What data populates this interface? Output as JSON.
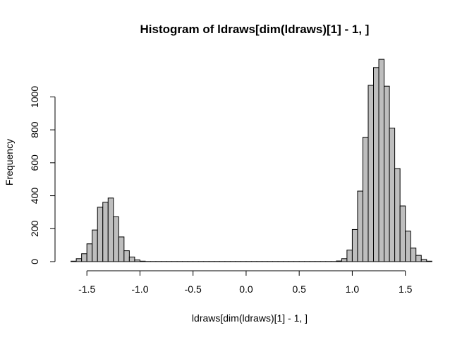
{
  "chart_data": {
    "type": "bar",
    "title": "Histogram of ldraws[dim(ldraws)[1] - 1, ]",
    "xlabel": "ldraws[dim(ldraws)[1] - 1, ]",
    "ylabel": "Frequency",
    "bin_width": 0.05,
    "xlim": [
      -1.65,
      1.75
    ],
    "ylim": [
      0,
      1220
    ],
    "x_ticks": [
      -1.5,
      -1.0,
      -0.5,
      0.0,
      0.5,
      1.0,
      1.5
    ],
    "x_tick_labels": [
      "-1.5",
      "-1.0",
      "-0.5",
      "0.0",
      "0.5",
      "1.0",
      "1.5"
    ],
    "y_ticks": [
      0,
      200,
      400,
      600,
      800,
      1000
    ],
    "y_tick_labels": [
      "0",
      "200",
      "400",
      "600",
      "800",
      "1000"
    ],
    "grid": false,
    "bins": [
      {
        "x0": -1.65,
        "x1": -1.6,
        "count": 3
      },
      {
        "x0": -1.6,
        "x1": -1.55,
        "count": 18
      },
      {
        "x0": -1.55,
        "x1": -1.5,
        "count": 48
      },
      {
        "x0": -1.5,
        "x1": -1.45,
        "count": 108
      },
      {
        "x0": -1.45,
        "x1": -1.4,
        "count": 192
      },
      {
        "x0": -1.4,
        "x1": -1.35,
        "count": 330
      },
      {
        "x0": -1.35,
        "x1": -1.3,
        "count": 360
      },
      {
        "x0": -1.3,
        "x1": -1.25,
        "count": 386
      },
      {
        "x0": -1.25,
        "x1": -1.2,
        "count": 272
      },
      {
        "x0": -1.2,
        "x1": -1.15,
        "count": 150
      },
      {
        "x0": -1.15,
        "x1": -1.1,
        "count": 66
      },
      {
        "x0": -1.1,
        "x1": -1.05,
        "count": 28
      },
      {
        "x0": -1.05,
        "x1": -1.0,
        "count": 10
      },
      {
        "x0": -1.0,
        "x1": -0.95,
        "count": 3
      },
      {
        "x0": -0.95,
        "x1": -0.9,
        "count": 1
      },
      {
        "x0": -0.9,
        "x1": -0.85,
        "count": 1
      },
      {
        "x0": -0.85,
        "x1": -0.8,
        "count": 1
      },
      {
        "x0": -0.8,
        "x1": -0.75,
        "count": 1
      },
      {
        "x0": -0.75,
        "x1": -0.7,
        "count": 1
      },
      {
        "x0": -0.7,
        "x1": -0.65,
        "count": 1
      },
      {
        "x0": -0.65,
        "x1": -0.6,
        "count": 1
      },
      {
        "x0": -0.6,
        "x1": -0.55,
        "count": 1
      },
      {
        "x0": -0.55,
        "x1": -0.5,
        "count": 1
      },
      {
        "x0": -0.5,
        "x1": -0.45,
        "count": 1
      },
      {
        "x0": -0.45,
        "x1": -0.4,
        "count": 1
      },
      {
        "x0": -0.4,
        "x1": -0.35,
        "count": 1
      },
      {
        "x0": -0.35,
        "x1": -0.3,
        "count": 1
      },
      {
        "x0": -0.3,
        "x1": -0.25,
        "count": 1
      },
      {
        "x0": -0.25,
        "x1": -0.2,
        "count": 1
      },
      {
        "x0": -0.2,
        "x1": -0.15,
        "count": 1
      },
      {
        "x0": -0.15,
        "x1": -0.1,
        "count": 1
      },
      {
        "x0": -0.1,
        "x1": -0.05,
        "count": 1
      },
      {
        "x0": -0.05,
        "x1": 0.0,
        "count": 1
      },
      {
        "x0": 0.0,
        "x1": 0.05,
        "count": 1
      },
      {
        "x0": 0.05,
        "x1": 0.1,
        "count": 1
      },
      {
        "x0": 0.1,
        "x1": 0.15,
        "count": 1
      },
      {
        "x0": 0.15,
        "x1": 0.2,
        "count": 1
      },
      {
        "x0": 0.2,
        "x1": 0.25,
        "count": 1
      },
      {
        "x0": 0.25,
        "x1": 0.3,
        "count": 1
      },
      {
        "x0": 0.3,
        "x1": 0.35,
        "count": 1
      },
      {
        "x0": 0.35,
        "x1": 0.4,
        "count": 1
      },
      {
        "x0": 0.4,
        "x1": 0.45,
        "count": 1
      },
      {
        "x0": 0.45,
        "x1": 0.5,
        "count": 1
      },
      {
        "x0": 0.5,
        "x1": 0.55,
        "count": 1
      },
      {
        "x0": 0.55,
        "x1": 0.6,
        "count": 1
      },
      {
        "x0": 0.6,
        "x1": 0.65,
        "count": 1
      },
      {
        "x0": 0.65,
        "x1": 0.7,
        "count": 1
      },
      {
        "x0": 0.7,
        "x1": 0.75,
        "count": 1
      },
      {
        "x0": 0.75,
        "x1": 0.8,
        "count": 1
      },
      {
        "x0": 0.8,
        "x1": 0.85,
        "count": 1
      },
      {
        "x0": 0.85,
        "x1": 0.9,
        "count": 4
      },
      {
        "x0": 0.9,
        "x1": 0.95,
        "count": 18
      },
      {
        "x0": 0.95,
        "x1": 1.0,
        "count": 70
      },
      {
        "x0": 1.0,
        "x1": 1.05,
        "count": 195
      },
      {
        "x0": 1.05,
        "x1": 1.1,
        "count": 428
      },
      {
        "x0": 1.1,
        "x1": 1.15,
        "count": 755
      },
      {
        "x0": 1.15,
        "x1": 1.2,
        "count": 1070
      },
      {
        "x0": 1.2,
        "x1": 1.25,
        "count": 1178
      },
      {
        "x0": 1.25,
        "x1": 1.3,
        "count": 1228
      },
      {
        "x0": 1.3,
        "x1": 1.35,
        "count": 1065
      },
      {
        "x0": 1.35,
        "x1": 1.4,
        "count": 810
      },
      {
        "x0": 1.4,
        "x1": 1.45,
        "count": 565
      },
      {
        "x0": 1.45,
        "x1": 1.5,
        "count": 338
      },
      {
        "x0": 1.5,
        "x1": 1.55,
        "count": 185
      },
      {
        "x0": 1.55,
        "x1": 1.6,
        "count": 82
      },
      {
        "x0": 1.6,
        "x1": 1.65,
        "count": 38
      },
      {
        "x0": 1.65,
        "x1": 1.7,
        "count": 13
      },
      {
        "x0": 1.7,
        "x1": 1.75,
        "count": 3
      }
    ]
  }
}
